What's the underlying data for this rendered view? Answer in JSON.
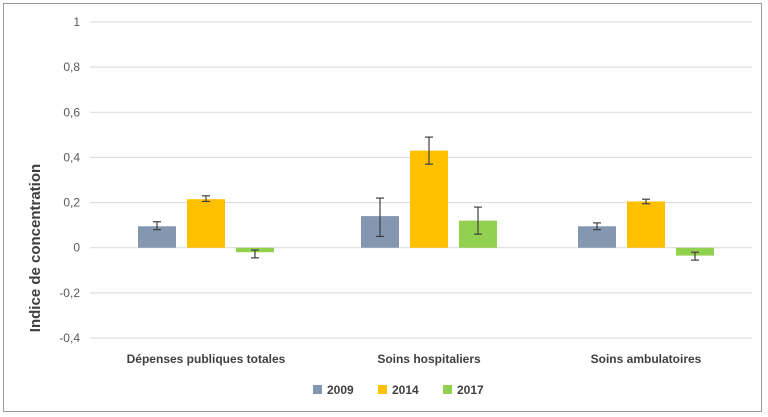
{
  "chart_data": {
    "type": "bar",
    "title": "",
    "xlabel": "",
    "ylabel": "Indice de concentration",
    "ylim": [
      -0.4,
      1
    ],
    "yticks": [
      "1",
      "0,8",
      "0,6",
      "0,4",
      "0,2",
      "0",
      "-0,2",
      "-0,4"
    ],
    "ytick_values": [
      1,
      0.8,
      0.6,
      0.4,
      0.2,
      0,
      -0.2,
      -0.4
    ],
    "grid": true,
    "legend_position": "bottom",
    "categories": [
      "Dépenses publiques totales",
      "Soins  hospitaliers",
      "Soins ambulatoires"
    ],
    "series": [
      {
        "name": "2009",
        "color": "#8497b0",
        "values": [
          0.095,
          0.14,
          0.095
        ],
        "err_low": [
          0.08,
          0.05,
          0.08
        ],
        "err_high": [
          0.115,
          0.22,
          0.11
        ]
      },
      {
        "name": "2014",
        "color": "#ffc000",
        "values": [
          0.215,
          0.43,
          0.205
        ],
        "err_low": [
          0.205,
          0.37,
          0.195
        ],
        "err_high": [
          0.23,
          0.49,
          0.215
        ]
      },
      {
        "name": "2017",
        "color": "#92d050",
        "values": [
          -0.02,
          0.12,
          -0.035
        ],
        "err_low": [
          -0.045,
          0.06,
          -0.055
        ],
        "err_high": [
          -0.01,
          0.18,
          -0.02
        ]
      }
    ]
  }
}
